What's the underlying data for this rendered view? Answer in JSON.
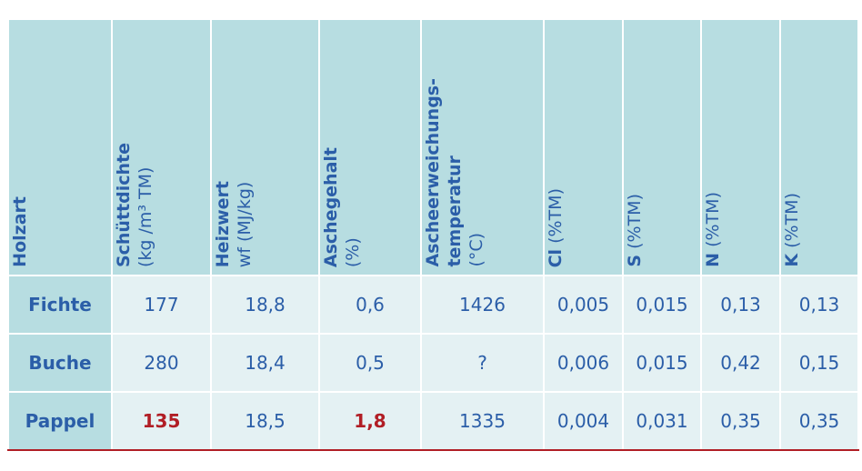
{
  "table": {
    "header": [
      {
        "bold": [
          "Holzart"
        ]
      },
      {
        "bold": [
          "Schüttdichte"
        ],
        "unit": "(kg /m³ TM)"
      },
      {
        "bold": [
          "Heizwert"
        ],
        "unit": "wf (MJ/kg)"
      },
      {
        "bold": [
          "Aschegehalt"
        ],
        "unit": "(%)"
      },
      {
        "bold": [
          "Ascheerweichungs-",
          "temperatur"
        ],
        "unit": "(°C)"
      },
      {
        "bold": [
          "Cl"
        ],
        "unit": "(%TM)"
      },
      {
        "bold": [
          "S"
        ],
        "unit": "(%TM)"
      },
      {
        "bold": [
          "N"
        ],
        "unit": "(%TM)"
      },
      {
        "bold": [
          "K"
        ],
        "unit": "(%TM)"
      }
    ],
    "rows": [
      [
        "Fichte",
        "177",
        "18,8",
        "0,6",
        "1426",
        "0,005",
        "0,015",
        "0,13",
        "0,13"
      ],
      [
        "Buche",
        "280",
        "18,4",
        "0,5",
        "?",
        "0,006",
        "0,015",
        "0,42",
        "0,15"
      ],
      [
        "Pappel",
        "135",
        "18,5",
        "1,8",
        "1335",
        "0,004",
        "0,031",
        "0,35",
        "0,35"
      ]
    ]
  }
}
